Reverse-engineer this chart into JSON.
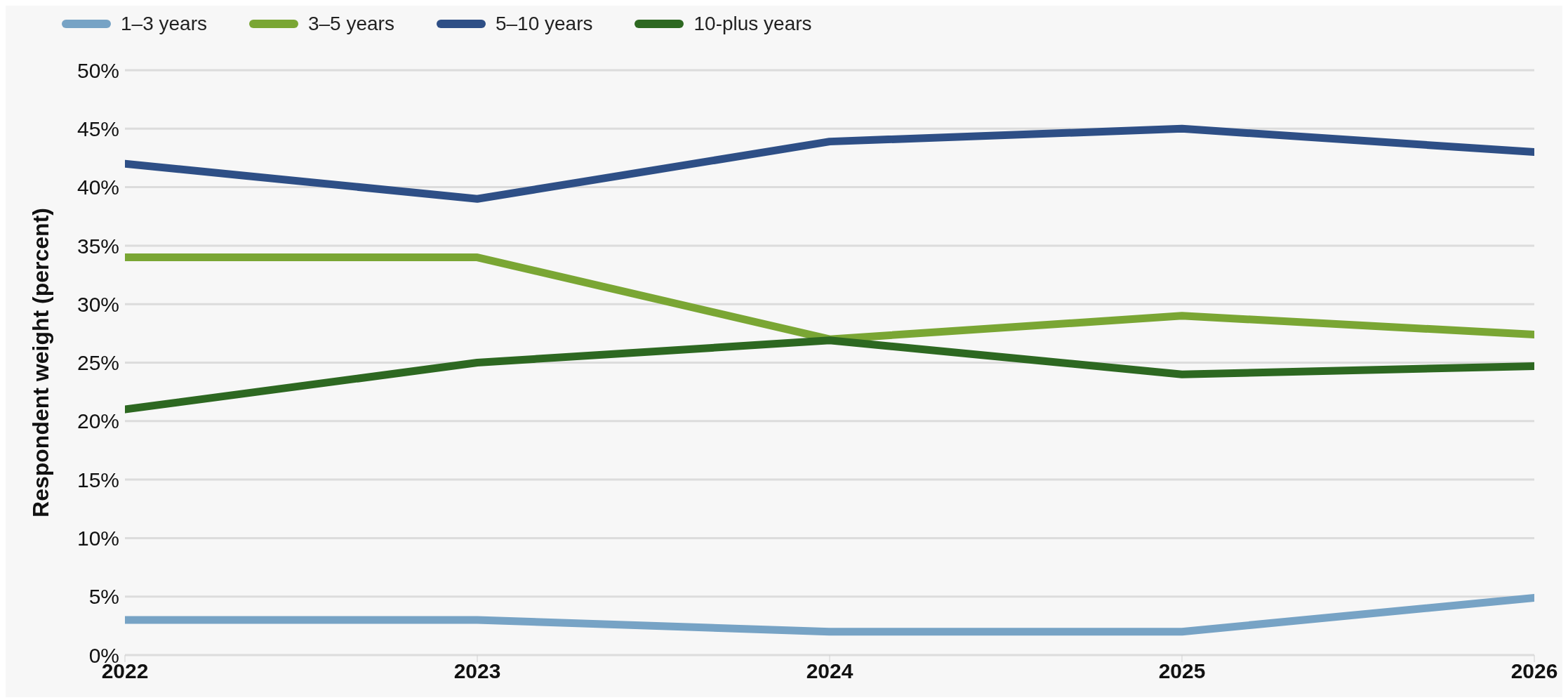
{
  "chart_data": {
    "type": "line",
    "ylabel": "Respondent weight (percent)",
    "x": [
      2022,
      2023,
      2024,
      2025,
      2026
    ],
    "xlim": [
      2022,
      2026
    ],
    "xticks": [
      2022,
      2023,
      2024,
      2025,
      2026
    ],
    "ylim": [
      0,
      50
    ],
    "yticks": [
      {
        "value": 0,
        "label": "0%"
      },
      {
        "value": 5,
        "label": "5%"
      },
      {
        "value": 10,
        "label": "10%"
      },
      {
        "value": 15,
        "label": "15%"
      },
      {
        "value": 20,
        "label": "20%"
      },
      {
        "value": 25,
        "label": "25%"
      },
      {
        "value": 30,
        "label": "30%"
      },
      {
        "value": 35,
        "label": "35%"
      },
      {
        "value": 40,
        "label": "40%"
      },
      {
        "value": 45,
        "label": "45%"
      },
      {
        "value": 50,
        "label": "50%"
      }
    ],
    "grid": "y",
    "legend": "top left",
    "marker": "none",
    "line_style": "solid",
    "series": [
      {
        "name": "1–3 years",
        "color": "#77a3c5",
        "values": [
          3,
          3,
          2,
          2,
          4.9
        ]
      },
      {
        "name": "3–5 years",
        "color": "#7aa634",
        "values": [
          34,
          34,
          27,
          29,
          27.4
        ]
      },
      {
        "name": "5–10 years",
        "color": "#2e4f86",
        "values": [
          42,
          39,
          43.9,
          45,
          43
        ]
      },
      {
        "name": "10-plus years",
        "color": "#2d6821",
        "values": [
          21,
          25,
          26.9,
          24,
          24.7
        ]
      }
    ]
  }
}
